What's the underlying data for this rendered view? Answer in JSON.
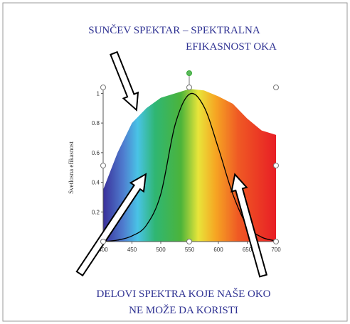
{
  "chart_data": {
    "type": "line",
    "title": "SUNČEV SPEKTAR – SPEKTRALNA",
    "subtitle": "EFIKASNOST OKA",
    "annotations": [
      "DELOVI SPEKTRA KOJE NAŠE OKO",
      "NE MOŽE DA KORISTI"
    ],
    "y_label": "Svetlosna efikasnost",
    "x": [
      400,
      425,
      450,
      475,
      500,
      525,
      550,
      575,
      600,
      625,
      650,
      675,
      700
    ],
    "series": [
      {
        "kind": "area",
        "values": [
          0.35,
          0.6,
          0.8,
          0.9,
          0.97,
          1.0,
          1.03,
          1.02,
          0.98,
          0.93,
          0.83,
          0.75,
          0.72
        ]
      },
      {
        "kind": "line",
        "color": "#000000",
        "values": [
          0.0004,
          0.01,
          0.038,
          0.11,
          0.32,
          0.79,
          0.995,
          0.91,
          0.63,
          0.32,
          0.107,
          0.03,
          0.004
        ]
      }
    ],
    "xlim": [
      400,
      700
    ],
    "ylim": [
      0,
      1.05
    ],
    "xticks": [
      400,
      450,
      500,
      550,
      600,
      650,
      700
    ],
    "yticks": [
      0.2,
      0.4,
      0.6,
      0.8,
      1.0
    ]
  }
}
